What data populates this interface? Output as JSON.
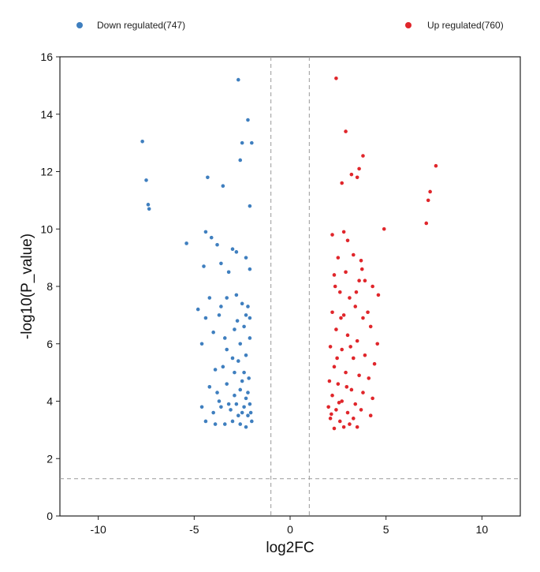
{
  "chart_data": {
    "type": "scatter",
    "title": "",
    "xlabel": "log2FC",
    "ylabel": "-log10(P_value)",
    "xlim": [
      -12,
      12
    ],
    "ylim": [
      0,
      16
    ],
    "x_ticks": [
      -10,
      -5,
      0,
      5,
      10
    ],
    "y_ticks": [
      0,
      2,
      4,
      6,
      8,
      10,
      12,
      14,
      16
    ],
    "threshold_lines": {
      "x": [
        -1,
        1
      ],
      "y": 1.3,
      "style": "dashed gray"
    },
    "grid": false,
    "legend_position": "top",
    "series": [
      {
        "name": "Down regulated(747)",
        "color": "#3f7fbf",
        "points": [
          [
            -2.7,
            15.2
          ],
          [
            -2.2,
            13.8
          ],
          [
            -2.0,
            13.0
          ],
          [
            -2.5,
            13.0
          ],
          [
            -2.6,
            12.4
          ],
          [
            -2.1,
            10.8
          ],
          [
            -4.3,
            11.8
          ],
          [
            -3.5,
            11.5
          ],
          [
            -7.7,
            13.05
          ],
          [
            -7.5,
            11.7
          ],
          [
            -7.4,
            10.85
          ],
          [
            -7.35,
            10.7
          ],
          [
            -5.4,
            9.5
          ],
          [
            -4.4,
            9.9
          ],
          [
            -4.1,
            9.7
          ],
          [
            -3.8,
            9.45
          ],
          [
            -3.0,
            9.3
          ],
          [
            -2.8,
            9.2
          ],
          [
            -2.3,
            9.0
          ],
          [
            -2.1,
            8.6
          ],
          [
            -4.5,
            8.7
          ],
          [
            -3.6,
            8.8
          ],
          [
            -3.2,
            8.5
          ],
          [
            -4.8,
            7.2
          ],
          [
            -4.2,
            7.6
          ],
          [
            -3.7,
            7.0
          ],
          [
            -3.3,
            7.6
          ],
          [
            -2.8,
            7.7
          ],
          [
            -2.5,
            7.4
          ],
          [
            -2.2,
            7.3
          ],
          [
            -2.1,
            6.9
          ],
          [
            -4.0,
            6.4
          ],
          [
            -3.4,
            6.2
          ],
          [
            -2.9,
            6.5
          ],
          [
            -2.6,
            6.0
          ],
          [
            -2.3,
            5.6
          ],
          [
            -4.6,
            6.0
          ],
          [
            -3.9,
            5.1
          ],
          [
            -3.5,
            5.2
          ],
          [
            -3.0,
            5.5
          ],
          [
            -2.7,
            5.4
          ],
          [
            -2.4,
            5.0
          ],
          [
            -2.15,
            4.8
          ],
          [
            -4.2,
            4.5
          ],
          [
            -3.8,
            4.3
          ],
          [
            -3.3,
            4.6
          ],
          [
            -2.9,
            4.2
          ],
          [
            -2.6,
            4.4
          ],
          [
            -2.3,
            4.1
          ],
          [
            -2.1,
            3.9
          ],
          [
            -4.6,
            3.8
          ],
          [
            -4.0,
            3.6
          ],
          [
            -3.6,
            3.8
          ],
          [
            -3.1,
            3.7
          ],
          [
            -2.8,
            3.9
          ],
          [
            -2.5,
            3.6
          ],
          [
            -2.2,
            3.5
          ],
          [
            -2.0,
            3.3
          ],
          [
            -4.4,
            3.3
          ],
          [
            -3.9,
            3.2
          ],
          [
            -3.4,
            3.2
          ],
          [
            -3.0,
            3.3
          ],
          [
            -2.6,
            3.2
          ],
          [
            -2.3,
            3.1
          ],
          [
            -2.05,
            3.6
          ],
          [
            -2.4,
            3.8
          ],
          [
            -2.7,
            3.5
          ],
          [
            -3.2,
            3.9
          ],
          [
            -3.7,
            4.0
          ],
          [
            -2.2,
            4.3
          ],
          [
            -2.5,
            4.7
          ],
          [
            -2.9,
            5.0
          ],
          [
            -3.3,
            5.8
          ],
          [
            -2.1,
            6.2
          ],
          [
            -2.4,
            6.6
          ],
          [
            -2.75,
            6.8
          ],
          [
            -3.6,
            7.3
          ],
          [
            -4.4,
            6.9
          ],
          [
            -2.3,
            7.0
          ]
        ]
      },
      {
        "name": "Up regulated(760)",
        "color": "#e0262b",
        "points": [
          [
            2.4,
            15.25
          ],
          [
            2.9,
            13.4
          ],
          [
            3.8,
            12.55
          ],
          [
            3.6,
            12.1
          ],
          [
            3.2,
            11.9
          ],
          [
            3.5,
            11.8
          ],
          [
            2.7,
            11.6
          ],
          [
            7.6,
            12.2
          ],
          [
            7.3,
            11.3
          ],
          [
            7.2,
            11.0
          ],
          [
            4.9,
            10.0
          ],
          [
            7.1,
            10.2
          ],
          [
            2.2,
            9.8
          ],
          [
            2.8,
            9.9
          ],
          [
            3.0,
            9.6
          ],
          [
            2.5,
            9.0
          ],
          [
            3.3,
            9.1
          ],
          [
            3.7,
            8.9
          ],
          [
            2.9,
            8.5
          ],
          [
            2.3,
            8.4
          ],
          [
            3.6,
            8.2
          ],
          [
            3.9,
            8.2
          ],
          [
            4.3,
            8.0
          ],
          [
            2.6,
            7.8
          ],
          [
            3.1,
            7.6
          ],
          [
            3.4,
            7.3
          ],
          [
            4.6,
            7.7
          ],
          [
            2.2,
            7.1
          ],
          [
            2.8,
            7.0
          ],
          [
            3.8,
            6.9
          ],
          [
            4.2,
            6.6
          ],
          [
            2.4,
            6.5
          ],
          [
            3.0,
            6.3
          ],
          [
            3.5,
            6.1
          ],
          [
            2.1,
            5.9
          ],
          [
            2.7,
            5.8
          ],
          [
            3.3,
            5.5
          ],
          [
            3.9,
            5.6
          ],
          [
            4.4,
            5.3
          ],
          [
            2.3,
            5.2
          ],
          [
            2.9,
            5.0
          ],
          [
            3.6,
            4.9
          ],
          [
            2.05,
            4.7
          ],
          [
            2.5,
            4.6
          ],
          [
            3.2,
            4.4
          ],
          [
            3.8,
            4.3
          ],
          [
            4.3,
            4.1
          ],
          [
            2.2,
            4.2
          ],
          [
            2.7,
            4.0
          ],
          [
            3.4,
            3.9
          ],
          [
            2.0,
            3.8
          ],
          [
            2.4,
            3.7
          ],
          [
            3.0,
            3.6
          ],
          [
            3.7,
            3.7
          ],
          [
            4.2,
            3.5
          ],
          [
            2.1,
            3.4
          ],
          [
            2.6,
            3.3
          ],
          [
            3.1,
            3.2
          ],
          [
            3.5,
            3.1
          ],
          [
            2.3,
            3.05
          ],
          [
            2.8,
            3.1
          ],
          [
            3.3,
            3.4
          ],
          [
            2.15,
            3.55
          ],
          [
            2.55,
            3.95
          ],
          [
            2.95,
            4.5
          ],
          [
            2.45,
            5.5
          ],
          [
            3.15,
            5.9
          ],
          [
            2.65,
            6.9
          ],
          [
            3.45,
            7.8
          ],
          [
            2.35,
            8.0
          ],
          [
            3.75,
            8.6
          ],
          [
            4.05,
            7.1
          ],
          [
            4.55,
            6.0
          ],
          [
            4.1,
            4.8
          ]
        ]
      }
    ]
  }
}
